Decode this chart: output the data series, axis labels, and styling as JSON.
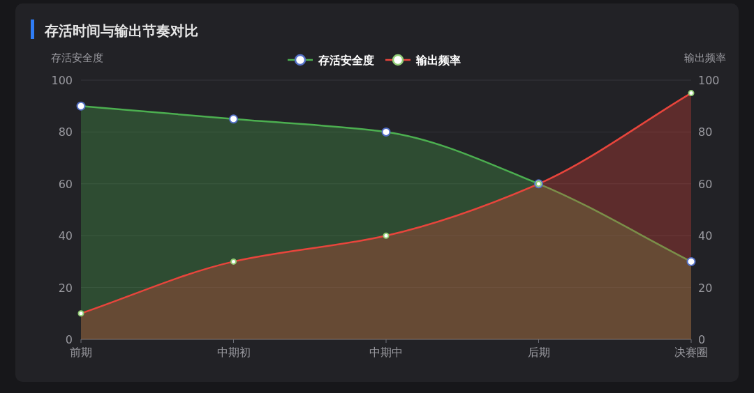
{
  "chart_data": {
    "type": "area",
    "title": "存活时间与输出节奏对比",
    "ylabel": "存活安全度",
    "y2label": "输出频率",
    "categories": [
      "前期",
      "中期初",
      "中期中",
      "后期",
      "决赛圈"
    ],
    "series": [
      {
        "name": "存活安全度",
        "color": "#4caf50",
        "values": [
          90,
          85,
          80,
          60,
          30
        ]
      },
      {
        "name": "输出频率",
        "color": "#e8453c",
        "axis": "y2",
        "values": [
          10,
          30,
          40,
          60,
          95
        ]
      }
    ],
    "ylim": [
      0,
      100
    ],
    "yticks": [
      0,
      20,
      40,
      60,
      80,
      100
    ],
    "y2lim": [
      0,
      100
    ],
    "y2ticks": [
      0,
      20,
      40,
      60,
      80,
      100
    ],
    "grid": "y",
    "legend": "top",
    "marker": "circle"
  }
}
